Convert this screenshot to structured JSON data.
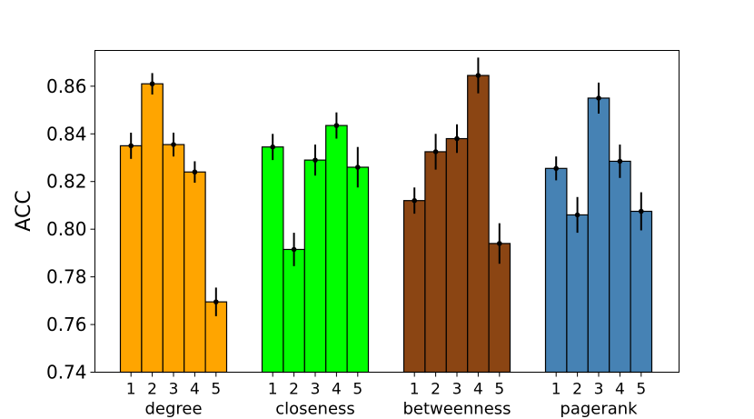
{
  "chart_data": {
    "type": "bar",
    "ylabel": "ACC",
    "ylim": [
      0.74,
      0.875
    ],
    "yticks": [
      "0.74",
      "0.76",
      "0.78",
      "0.80",
      "0.82",
      "0.84",
      "0.86"
    ],
    "bar_labels": [
      "1",
      "2",
      "3",
      "4",
      "5"
    ],
    "groups": [
      {
        "name": "degree",
        "color": "#FFA500",
        "values": [
          0.835,
          0.861,
          0.8355,
          0.824,
          0.7695
        ],
        "errors": [
          0.0055,
          0.0045,
          0.005,
          0.0045,
          0.006
        ]
      },
      {
        "name": "closeness",
        "color": "#00FF00",
        "values": [
          0.8345,
          0.7915,
          0.829,
          0.8435,
          0.826
        ],
        "errors": [
          0.0055,
          0.007,
          0.0065,
          0.0055,
          0.0085
        ]
      },
      {
        "name": "betweenness",
        "color": "#8B4513",
        "values": [
          0.812,
          0.8325,
          0.838,
          0.8645,
          0.794
        ],
        "errors": [
          0.0055,
          0.0075,
          0.006,
          0.0075,
          0.0085
        ]
      },
      {
        "name": "pagerank",
        "color": "#4682B4",
        "values": [
          0.8255,
          0.806,
          0.855,
          0.8285,
          0.8075
        ],
        "errors": [
          0.005,
          0.0075,
          0.0065,
          0.007,
          0.008
        ]
      }
    ]
  }
}
